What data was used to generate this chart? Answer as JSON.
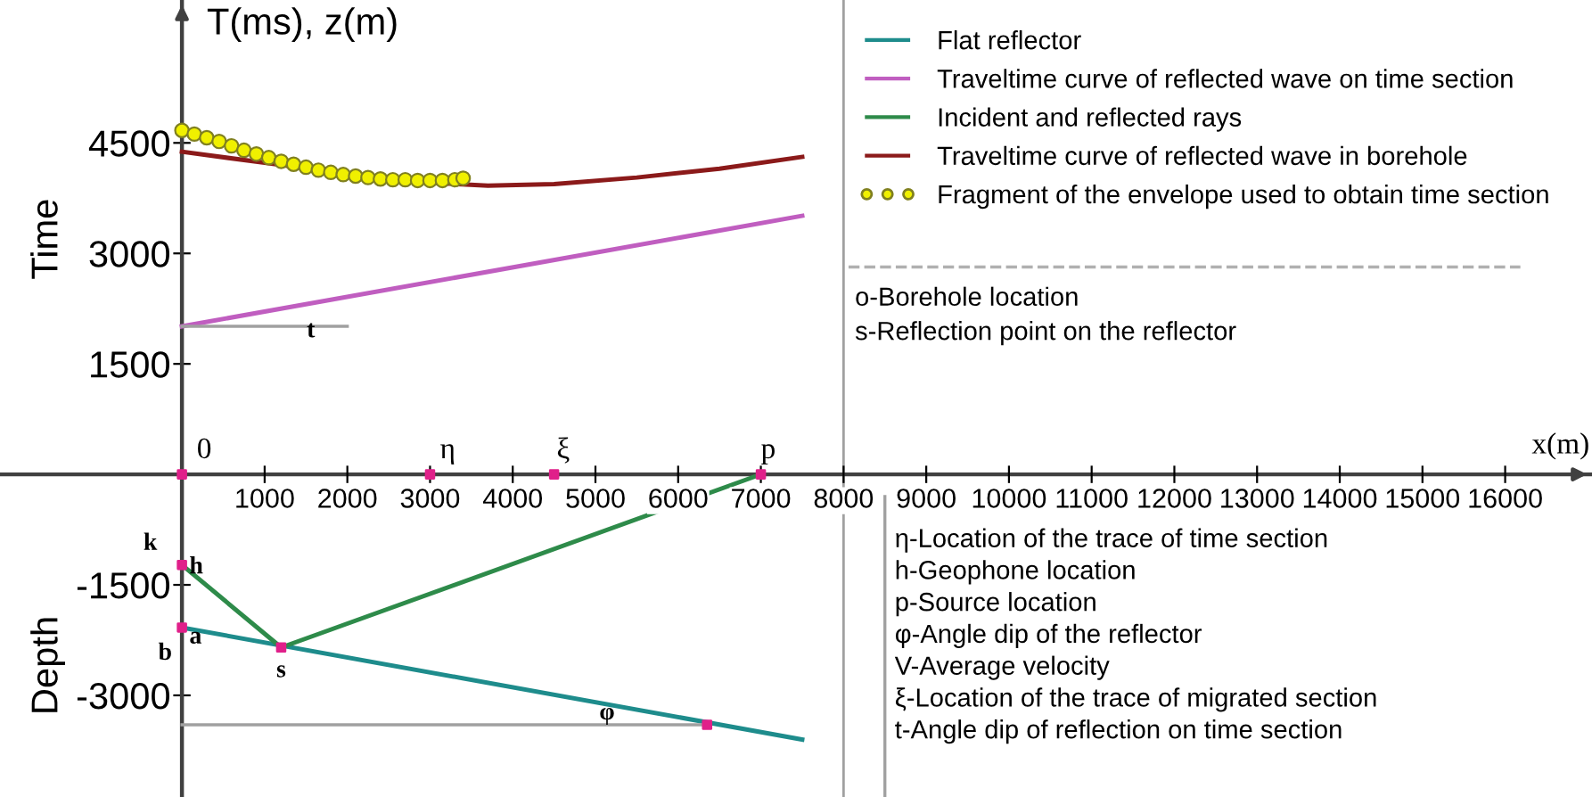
{
  "chart_data": {
    "type": "line",
    "xlabel": "x(m)",
    "ylabel": "T(ms), z(m)",
    "xlim": [
      -2200,
      17050
    ],
    "ylim": [
      -4380,
      6440
    ],
    "xticks": [
      1000,
      2000,
      3000,
      4000,
      5000,
      6000,
      7000,
      8000,
      9000,
      10000,
      11000,
      12000,
      13000,
      14000,
      15000,
      16000
    ],
    "yticks": [
      -3000,
      -1500,
      1500,
      3000,
      4500
    ],
    "grid": false,
    "legend": "top right",
    "series": [
      {
        "name": "Flat reflector",
        "color": "#1e8c8c",
        "x": [
          0,
          7500
        ],
        "values": [
          -2080,
          -3600
        ]
      },
      {
        "name": "Traveltime curve of reflected wave on time section",
        "color": "#c05ec0",
        "x": [
          0,
          7500
        ],
        "values": [
          2010,
          3510
        ]
      },
      {
        "name": "Incident and reflected rays",
        "color": "#2e8b4a",
        "x": [
          0,
          1200,
          7000
        ],
        "values": [
          -1230,
          -2350,
          0
        ]
      },
      {
        "name": "Traveltime curve of reflected wave in borehole",
        "color": "#8b1a1a",
        "x": [
          0,
          1000,
          2000,
          3000,
          3700,
          4500,
          5500,
          6500,
          7500
        ],
        "values": [
          4380,
          4230,
          4080,
          3960,
          3920,
          3940,
          4030,
          4150,
          4310
        ]
      },
      {
        "name": "Fragment of the envelope used to obtain time section",
        "type": "scatter",
        "marker": "circle",
        "color": "#f0f000",
        "x": [
          0,
          150,
          300,
          450,
          600,
          750,
          900,
          1050,
          1200,
          1350,
          1500,
          1650,
          1800,
          1950,
          2100,
          2250,
          2400,
          2550,
          2700,
          2850,
          3000,
          3150,
          3300,
          3400
        ],
        "values": [
          4670,
          4620,
          4570,
          4520,
          4460,
          4400,
          4350,
          4300,
          4250,
          4210,
          4170,
          4130,
          4100,
          4070,
          4050,
          4030,
          4010,
          4000,
          4000,
          3990,
          3990,
          3990,
          4000,
          4020
        ]
      },
      {
        "color": "#a0a0a0",
        "x": [
          0,
          2000
        ],
        "values": [
          2010,
          2010
        ]
      },
      {
        "color": "#a0a0a0",
        "x": [
          0,
          6350
        ],
        "values": [
          -3400,
          -3400
        ]
      },
      {
        "color": "#a0a0a0",
        "x": [
          8500,
          8500
        ],
        "values": [
          -300,
          -4380
        ]
      },
      {
        "type": "scatter",
        "marker": "square",
        "color": "#e0208a",
        "x": [
          0,
          3000,
          4500,
          7000,
          0,
          0,
          1200,
          6350
        ],
        "values": [
          0,
          0,
          0,
          0,
          -1230,
          -2080,
          -2350,
          -3400
        ]
      }
    ],
    "ref_lines": [
      {
        "axis": "x",
        "value": 8000,
        "color": "#a0a0a0"
      }
    ],
    "annotations": [
      "Time",
      "Depth",
      "o-Borehole location",
      "s-Reflection point on the reflector",
      "η-Location of the trace of time section",
      "h-Geophone location",
      "p-Source location",
      "φ-Angle dip of the reflector",
      "V-Average velocity",
      "ξ-Location of the trace of migrated section",
      "t-Angle dip of reflection on time section",
      {
        "text": "0",
        "x": 0,
        "y": 0
      },
      {
        "text": "η",
        "x": 3000,
        "y": 0
      },
      {
        "text": "ξ",
        "x": 4500,
        "y": 0
      },
      {
        "text": "p",
        "x": 7000,
        "y": 0
      },
      {
        "text": "k",
        "x": 0,
        "y": -1230
      },
      {
        "text": "h",
        "x": 0,
        "y": -1230
      },
      {
        "text": "b",
        "x": 0,
        "y": -2080
      },
      {
        "text": "a",
        "x": 0,
        "y": -2080
      },
      {
        "text": "s",
        "x": 1200,
        "y": -2350
      },
      {
        "text": "φ",
        "x": 5200,
        "y": -3400
      },
      {
        "text": "t",
        "x": 1200,
        "y": 2010
      }
    ]
  }
}
